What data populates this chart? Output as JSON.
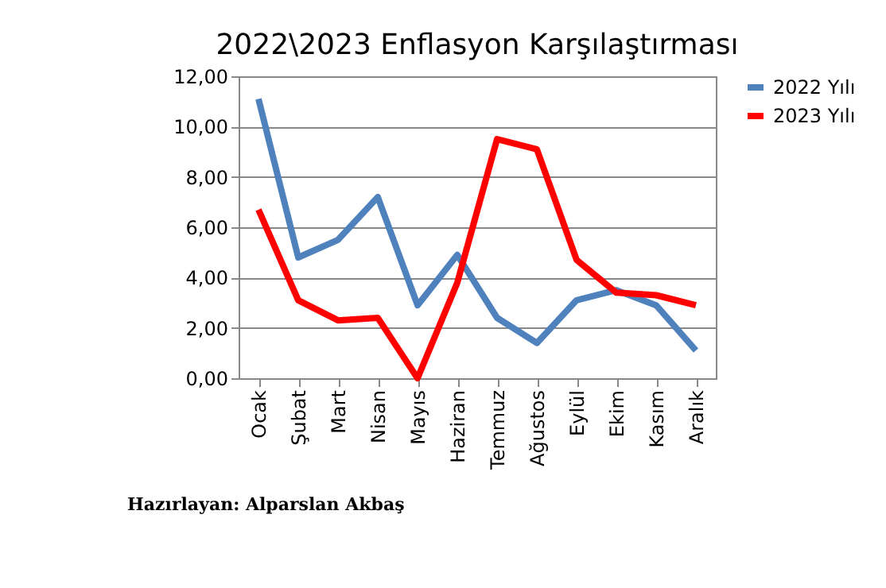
{
  "chart_data": {
    "type": "line",
    "title": "2022\\2023 Enflasyon Karşılaştırması",
    "categories": [
      "Ocak",
      "Şubat",
      "Mart",
      "Nisan",
      "Mayıs",
      "Haziran",
      "Temmuz",
      "Ağustos",
      "Eylül",
      "Ekim",
      "Kasım",
      "Aralık"
    ],
    "series": [
      {
        "name": "2022 Yılı",
        "color": "#4f81bd",
        "values": [
          11.1,
          4.8,
          5.5,
          7.2,
          2.9,
          4.9,
          2.4,
          1.4,
          3.1,
          3.5,
          2.9,
          1.1
        ]
      },
      {
        "name": "2023 Yılı",
        "color": "#ff0000",
        "values": [
          6.7,
          3.1,
          2.3,
          2.4,
          0.0,
          3.8,
          9.5,
          9.1,
          4.7,
          3.4,
          3.3,
          2.9
        ]
      }
    ],
    "ylim": [
      0,
      12
    ],
    "yticks": [
      {
        "value": 0,
        "label": "0,00"
      },
      {
        "value": 2,
        "label": "2,00"
      },
      {
        "value": 4,
        "label": "4,00"
      },
      {
        "value": 6,
        "label": "6,00"
      },
      {
        "value": 8,
        "label": "8,00"
      },
      {
        "value": 10,
        "label": "10,00"
      },
      {
        "value": 12,
        "label": "12,00"
      }
    ],
    "grid": "y",
    "legend": "right",
    "marker": "none",
    "line_style": "solid",
    "annotations": [
      "Hazırlayan: Alparslan Akbaş"
    ]
  }
}
